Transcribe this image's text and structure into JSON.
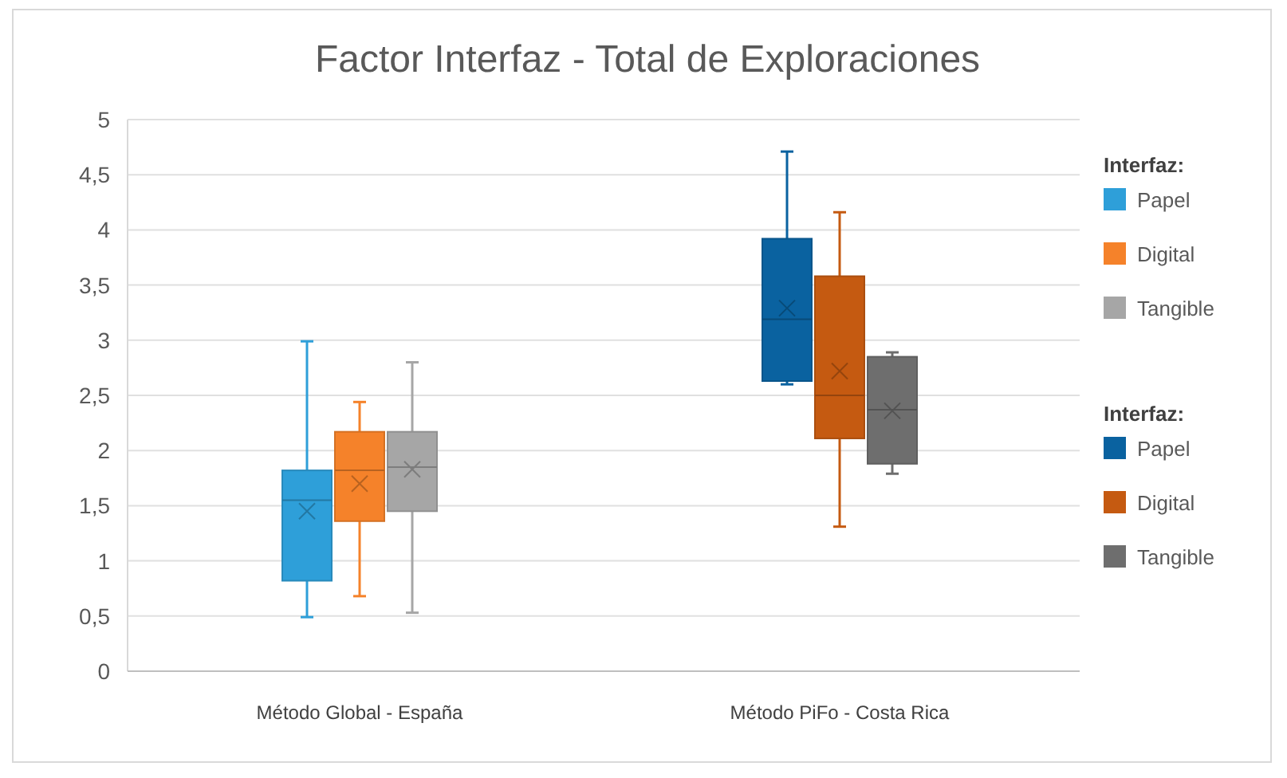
{
  "chart_data": {
    "type": "box",
    "title": "Factor Interfaz - Total de Exploraciones",
    "categories": [
      "Método Global - España",
      "Método PiFo - Costa Rica"
    ],
    "ylim": [
      0,
      5
    ],
    "yticks": [
      0,
      {
        "value": 0.5,
        "label": "0,5"
      },
      1,
      {
        "value": 1.5,
        "label": "1,5"
      },
      2,
      {
        "value": 2.5,
        "label": "2,5"
      },
      3,
      {
        "value": 3.5,
        "label": "3,5"
      },
      4,
      {
        "value": 4.5,
        "label": "4,5"
      },
      5
    ],
    "grid": "y",
    "legend": "right",
    "legend_title": "Interfaz:",
    "series": [
      {
        "name": "Papel",
        "color": "#2e9fd9",
        "boxes": [
          {
            "low": 0.49,
            "q1": 0.82,
            "median": 1.55,
            "q3": 1.82,
            "high": 2.99,
            "mean": 1.45
          },
          null
        ]
      },
      {
        "name": "Digital",
        "color": "#f5822a",
        "boxes": [
          {
            "low": 0.68,
            "q1": 1.36,
            "median": 1.82,
            "q3": 2.17,
            "high": 2.44,
            "mean": 1.7
          },
          null
        ]
      },
      {
        "name": "Tangible",
        "color": "#a6a6a6",
        "boxes": [
          {
            "low": 0.53,
            "q1": 1.45,
            "median": 1.85,
            "q3": 2.17,
            "high": 2.8,
            "mean": 1.83
          },
          null
        ]
      },
      {
        "name": "Papel",
        "color": "#0a62a0",
        "boxes": [
          null,
          {
            "low": 2.6,
            "q1": 2.63,
            "median": 3.19,
            "q3": 3.92,
            "high": 4.71,
            "mean": 3.29
          }
        ]
      },
      {
        "name": "Digital",
        "color": "#c55a11",
        "boxes": [
          null,
          {
            "low": 1.31,
            "q1": 2.11,
            "median": 2.5,
            "q3": 3.58,
            "high": 4.16,
            "mean": 2.72
          }
        ]
      },
      {
        "name": "Tangible",
        "color": "#6e6e6e",
        "boxes": [
          null,
          {
            "low": 1.79,
            "q1": 1.88,
            "median": 2.37,
            "q3": 2.85,
            "high": 2.89,
            "mean": 2.36
          }
        ]
      }
    ]
  }
}
